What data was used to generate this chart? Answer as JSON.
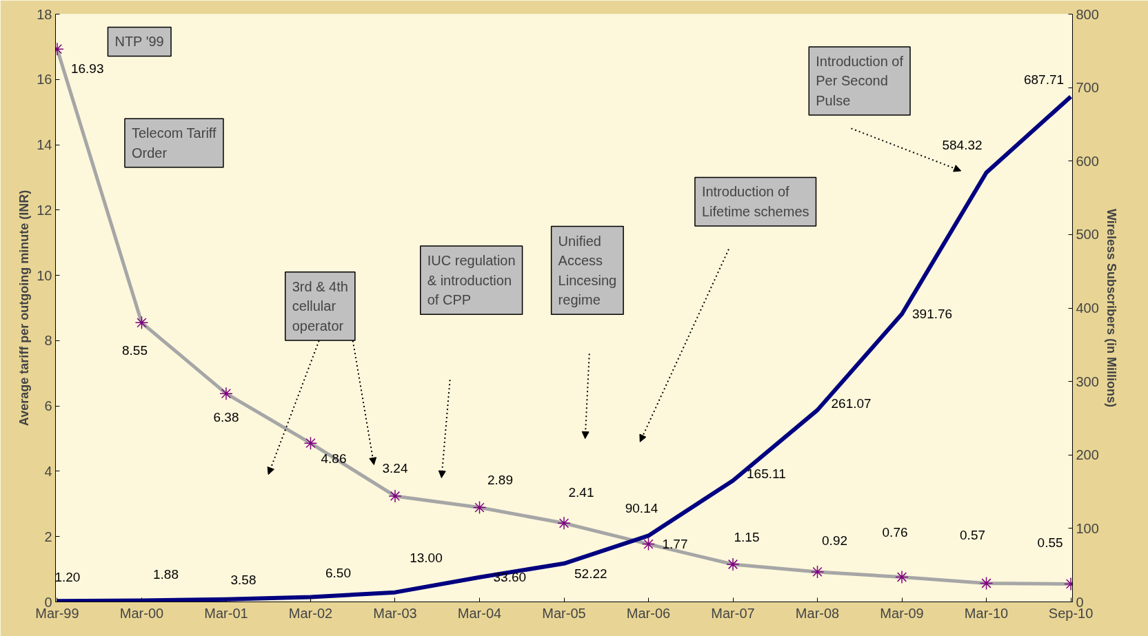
{
  "chart_data": {
    "type": "line",
    "categories": [
      "Mar-99",
      "Mar-00",
      "Mar-01",
      "Mar-02",
      "Mar-03",
      "Mar-04",
      "Mar-05",
      "Mar-06",
      "Mar-07",
      "Mar-08",
      "Mar-09",
      "Mar-10",
      "Sep-10"
    ],
    "ylabel": "Average tariff per outgoing minute (INR)",
    "y2label": "Wireless Subscribers (in Millions)",
    "ylim": [
      0,
      18
    ],
    "yticks": [
      0,
      2,
      4,
      6,
      8,
      10,
      12,
      14,
      16,
      18
    ],
    "y2lim": [
      0,
      800
    ],
    "y2ticks": [
      0,
      100,
      200,
      300,
      400,
      500,
      600,
      700,
      800
    ],
    "grid": false,
    "line_style": "solid",
    "series": [
      {
        "color": "#a6a6a6",
        "marker": "cross",
        "values": [
          16.93,
          8.55,
          6.38,
          4.86,
          3.24,
          2.89,
          2.41,
          1.77,
          1.15,
          0.92,
          0.76,
          0.57,
          0.55
        ],
        "value_labels": [
          "16.93",
          "8.55",
          "6.38",
          "4.86",
          "3.24",
          "2.89",
          "2.41",
          "1.77",
          "1.15",
          "0.92",
          "0.76",
          "0.57",
          "0.55"
        ]
      },
      {
        "color": "#000080",
        "marker": "none",
        "axis": "y2",
        "values": [
          1.2,
          1.88,
          3.58,
          6.5,
          13.0,
          33.6,
          52.22,
          90.14,
          165.11,
          261.07,
          391.76,
          584.32,
          687.71
        ],
        "value_labels": [
          "1.20",
          "1.88",
          "3.58",
          "6.50",
          "13.00",
          "33.60",
          "52.22",
          "90.14",
          "165.11",
          "261.07",
          "391.76",
          "584.32",
          "687.71"
        ]
      }
    ],
    "annotations": [
      "NTP '99",
      "Telecom Tariff Order",
      "3rd & 4th cellular operator",
      "IUC regulation & introduction of CPP",
      "Unified Access Lincesing regime",
      "Introduction of Lifetime schemes",
      "Introduction of Per Second Pulse"
    ]
  }
}
